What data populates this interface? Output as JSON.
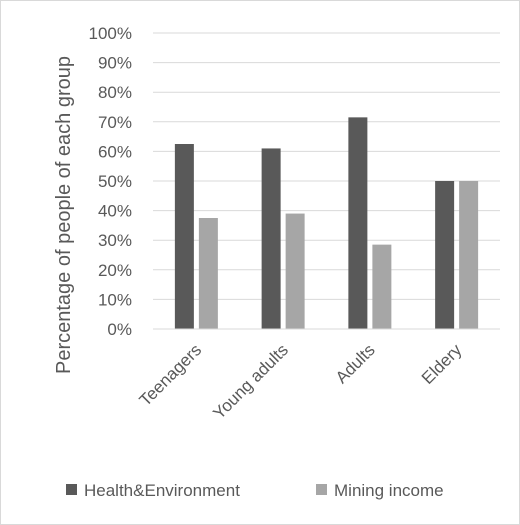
{
  "chart_data": {
    "type": "bar",
    "title": "",
    "xlabel": "",
    "ylabel": "Percentage of people of each group",
    "ylim": [
      0,
      100
    ],
    "yticks": [
      "0%",
      "10%",
      "20%",
      "30%",
      "40%",
      "50%",
      "60%",
      "70%",
      "80%",
      "90%",
      "100%"
    ],
    "categories": [
      "Teenagers",
      "Young adults",
      "Adults",
      "Eldery"
    ],
    "series": [
      {
        "name": "Health&Environment",
        "color": "#595959",
        "values": [
          62.5,
          61,
          71.5,
          50
        ]
      },
      {
        "name": "Mining income",
        "color": "#a6a6a6",
        "values": [
          37.5,
          39,
          28.5,
          50
        ]
      }
    ],
    "gridlines": true,
    "legend_position": "bottom"
  }
}
